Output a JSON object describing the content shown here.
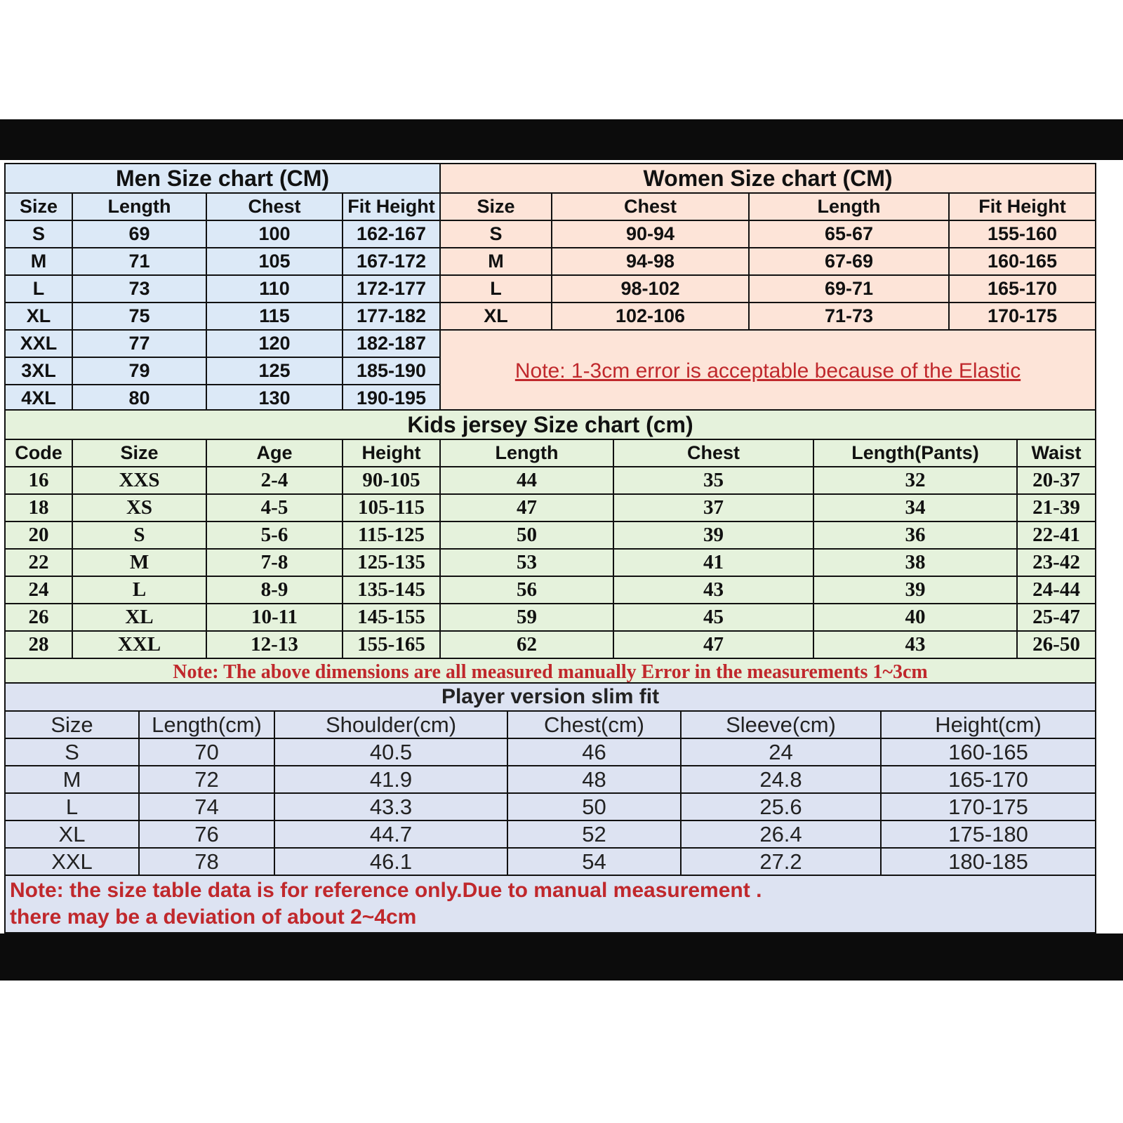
{
  "colors": {
    "men_bg": "#dce9f7",
    "women_bg": "#fde4d8",
    "kids_bg": "#e5f2dc",
    "player_bg": "#dde3f2",
    "note": "#c0282c"
  },
  "men": {
    "title": "Men Size chart (CM)",
    "headers": [
      "Size",
      "Length",
      "Chest",
      "Fit Height"
    ],
    "rows": [
      [
        "S",
        "69",
        "100",
        "162-167"
      ],
      [
        "M",
        "71",
        "105",
        "167-172"
      ],
      [
        "L",
        "73",
        "110",
        "172-177"
      ],
      [
        "XL",
        "75",
        "115",
        "177-182"
      ],
      [
        "XXL",
        "77",
        "120",
        "182-187"
      ],
      [
        "3XL",
        "79",
        "125",
        "185-190"
      ],
      [
        "4XL",
        "80",
        "130",
        "190-195"
      ]
    ]
  },
  "women": {
    "title": "Women Size chart (CM)",
    "headers": [
      "Size",
      "Chest",
      "Length",
      "Fit Height"
    ],
    "rows": [
      [
        "S",
        "90-94",
        "65-67",
        "155-160"
      ],
      [
        "M",
        "94-98",
        "67-69",
        "160-165"
      ],
      [
        "L",
        "98-102",
        "69-71",
        "165-170"
      ],
      [
        "XL",
        "102-106",
        "71-73",
        "170-175"
      ]
    ],
    "note": "Note: 1-3cm error is acceptable because of the Elastic"
  },
  "kids": {
    "title": "Kids jersey Size chart (cm)",
    "headers": [
      "Code",
      "Size",
      "Age",
      "Height",
      "Length",
      "Chest",
      "Length(Pants)",
      "Waist"
    ],
    "rows": [
      [
        "16",
        "XXS",
        "2-4",
        "90-105",
        "44",
        "35",
        "32",
        "20-37"
      ],
      [
        "18",
        "XS",
        "4-5",
        "105-115",
        "47",
        "37",
        "34",
        "21-39"
      ],
      [
        "20",
        "S",
        "5-6",
        "115-125",
        "50",
        "39",
        "36",
        "22-41"
      ],
      [
        "22",
        "M",
        "7-8",
        "125-135",
        "53",
        "41",
        "38",
        "23-42"
      ],
      [
        "24",
        "L",
        "8-9",
        "135-145",
        "56",
        "43",
        "39",
        "24-44"
      ],
      [
        "26",
        "XL",
        "10-11",
        "145-155",
        "59",
        "45",
        "40",
        "25-47"
      ],
      [
        "28",
        "XXL",
        "12-13",
        "155-165",
        "62",
        "47",
        "43",
        "26-50"
      ]
    ],
    "note": "Note: The above dimensions are all measured manually Error in the measurements 1~3cm"
  },
  "player": {
    "title": "Player version slim fit",
    "headers": [
      "Size",
      "Length(cm)",
      "Shoulder(cm)",
      "Chest(cm)",
      "Sleeve(cm)",
      "Height(cm)"
    ],
    "rows": [
      [
        "S",
        "70",
        "40.5",
        "46",
        "24",
        "160-165"
      ],
      [
        "M",
        "72",
        "41.9",
        "48",
        "24.8",
        "165-170"
      ],
      [
        "L",
        "74",
        "43.3",
        "50",
        "25.6",
        "170-175"
      ],
      [
        "XL",
        "76",
        "44.7",
        "52",
        "26.4",
        "175-180"
      ],
      [
        "XXL",
        "78",
        "46.1",
        "54",
        "27.2",
        "180-185"
      ]
    ],
    "note_line1": "Note:  the size table data is for reference only.Due to manual measurement .",
    "note_line2": "there may be a deviation of about 2~4cm"
  }
}
